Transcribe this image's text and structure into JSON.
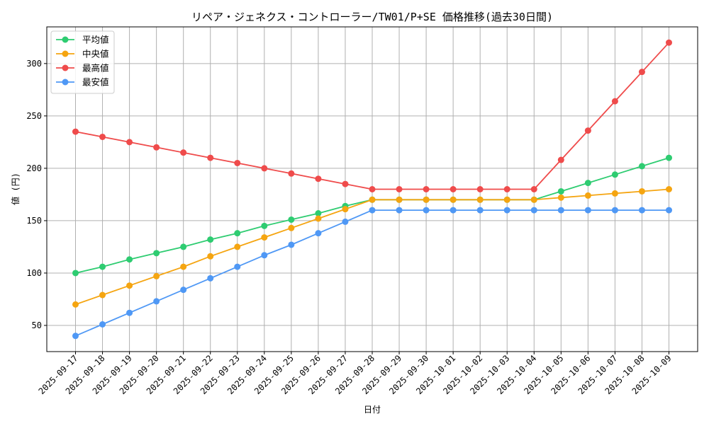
{
  "chart_data": {
    "type": "line",
    "title": "リペア・ジェネクス・コントローラー/TW01/P+SE 価格推移(過去30日間)",
    "xlabel": "日付",
    "ylabel": "値 (円)",
    "ylim": [
      25,
      335
    ],
    "yticks": [
      50,
      100,
      150,
      200,
      250,
      300
    ],
    "grid": true,
    "legend_position": "top-left",
    "categories": [
      "2025-09-17",
      "2025-09-18",
      "2025-09-19",
      "2025-09-20",
      "2025-09-21",
      "2025-09-22",
      "2025-09-23",
      "2025-09-24",
      "2025-09-25",
      "2025-09-26",
      "2025-09-27",
      "2025-09-28",
      "2025-09-29",
      "2025-09-30",
      "2025-10-01",
      "2025-10-02",
      "2025-10-03",
      "2025-10-04",
      "2025-10-05",
      "2025-10-06",
      "2025-10-07",
      "2025-10-08",
      "2025-10-09"
    ],
    "series": [
      {
        "name": "平均値",
        "color": "#2ecc71",
        "values": [
          100,
          106,
          113,
          119,
          125,
          132,
          138,
          145,
          151,
          157,
          164,
          170,
          170,
          170,
          170,
          170,
          170,
          170,
          178,
          186,
          194,
          202,
          210
        ]
      },
      {
        "name": "中央値",
        "color": "#f5a511",
        "values": [
          70,
          79,
          88,
          97,
          106,
          116,
          125,
          134,
          143,
          152,
          161,
          170,
          170,
          170,
          170,
          170,
          170,
          170,
          172,
          174,
          176,
          178,
          180
        ]
      },
      {
        "name": "最高値",
        "color": "#ef4b4b",
        "values": [
          235,
          230,
          225,
          220,
          215,
          210,
          205,
          200,
          195,
          190,
          185,
          180,
          180,
          180,
          180,
          180,
          180,
          180,
          208,
          236,
          264,
          292,
          320
        ]
      },
      {
        "name": "最安値",
        "color": "#4f98f5",
        "values": [
          40,
          51,
          62,
          73,
          84,
          95,
          106,
          117,
          127,
          138,
          149,
          160,
          160,
          160,
          160,
          160,
          160,
          160,
          160,
          160,
          160,
          160,
          160
        ]
      }
    ]
  }
}
